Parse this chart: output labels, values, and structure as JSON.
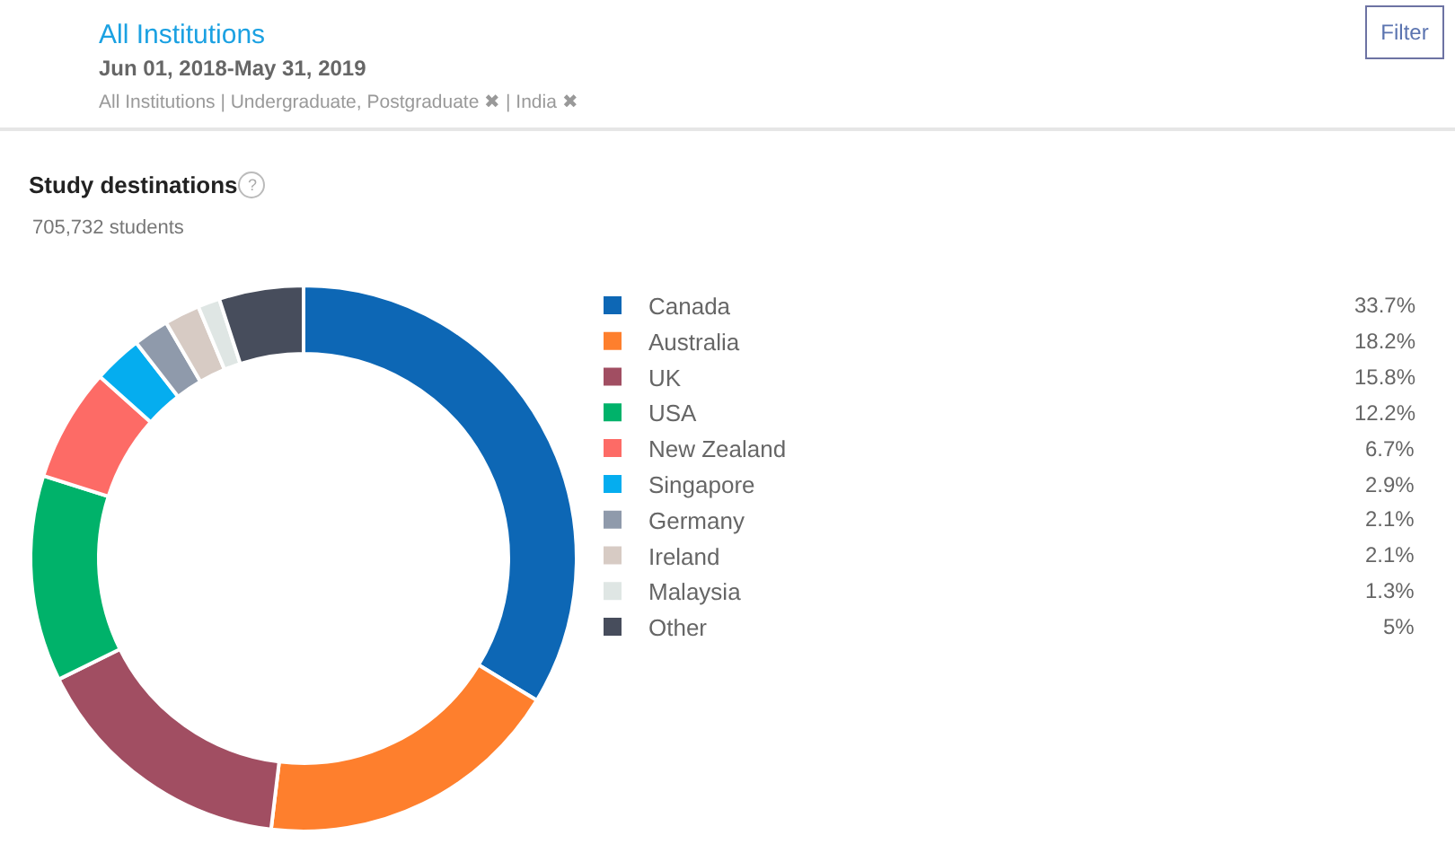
{
  "chart_data": {
    "type": "donut",
    "title": "Study destinations",
    "subtitle": "705,732 students",
    "categories": [
      "Canada",
      "Australia",
      "UK",
      "USA",
      "New Zealand",
      "Singapore",
      "Germany",
      "Ireland",
      "Malaysia",
      "Other"
    ],
    "values": [
      33.7,
      18.2,
      15.8,
      12.2,
      6.7,
      2.9,
      2.1,
      2.1,
      1.3,
      5
    ],
    "colors": [
      "#0d67b5",
      "#fe7f2d",
      "#a14e62",
      "#00b26a",
      "#fd6b66",
      "#05adef",
      "#8f9aab",
      "#d7cbc4",
      "#dfe6e4",
      "#474d5c"
    ],
    "value_labels": [
      "33.7%",
      "18.2%",
      "15.8%",
      "12.2%",
      "6.7%",
      "2.9%",
      "2.1%",
      "2.1%",
      "1.3%",
      "5%"
    ],
    "legend": "right",
    "annotations": [
      "All Institutions",
      "Jun 01, 2018-May 31, 2019",
      "All Institutions | Undergraduate, Postgraduate ✖ | India ✖",
      "Filter",
      "?"
    ]
  }
}
